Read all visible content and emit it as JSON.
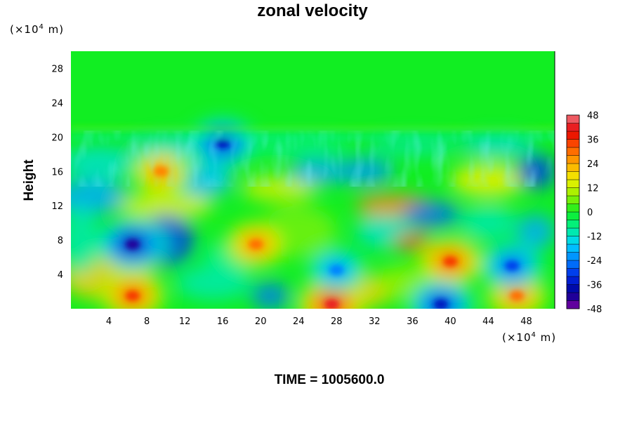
{
  "chart_data": {
    "type": "heatmap",
    "title": "zonal velocity",
    "ylabel": "Height",
    "x_unit": {
      "prefix": "(×10",
      "exp": "4",
      "suffix": " m)"
    },
    "y_unit": {
      "prefix": "(×10",
      "exp": "4",
      "suffix": " m)"
    },
    "xlim": [
      0,
      51
    ],
    "ylim": [
      0,
      30
    ],
    "x_ticks": [
      4,
      8,
      12,
      16,
      20,
      24,
      28,
      32,
      36,
      40,
      44,
      48
    ],
    "y_ticks": [
      4,
      8,
      12,
      16,
      20,
      24,
      28
    ],
    "colorbar": {
      "min": -48,
      "max": 48,
      "step": 4,
      "tick_labels": [
        48,
        36,
        24,
        12,
        0,
        -12,
        -24,
        -36,
        -48
      ]
    },
    "field_features": [
      {
        "x": 6.5,
        "y": 7.5,
        "value": -42
      },
      {
        "x": 6.5,
        "y": 1.5,
        "value": 35
      },
      {
        "x": 19.5,
        "y": 7.5,
        "value": 30
      },
      {
        "x": 27.5,
        "y": 0.5,
        "value": 42
      },
      {
        "x": 40,
        "y": 5.5,
        "value": 35
      },
      {
        "x": 47,
        "y": 1.5,
        "value": 30
      },
      {
        "x": 16,
        "y": 19.3,
        "value": -36
      },
      {
        "x": 9.5,
        "y": 16.0,
        "value": 28
      },
      {
        "x": 28,
        "y": 4.5,
        "value": -24
      },
      {
        "x": 39,
        "y": 0.5,
        "value": -36
      },
      {
        "x": 46.5,
        "y": 5.0,
        "value": -30
      }
    ],
    "caption": "TIME = 1005600.0"
  }
}
